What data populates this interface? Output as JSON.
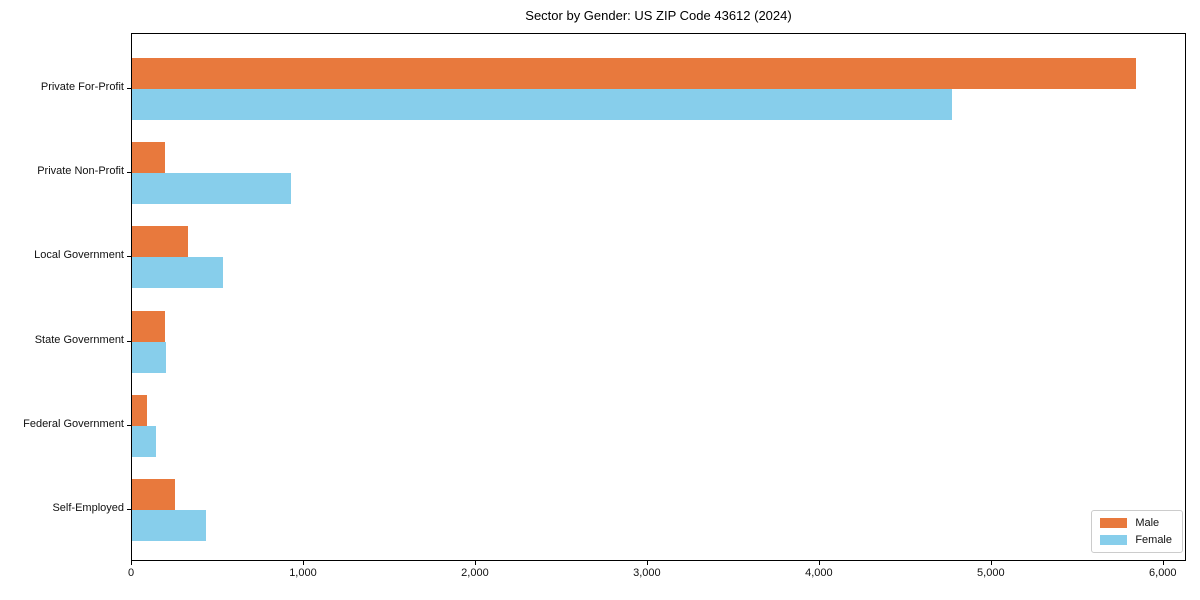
{
  "chart_data": {
    "type": "bar",
    "orientation": "horizontal",
    "title": "Sector by Gender: US ZIP Code 43612 (2024)",
    "categories": [
      "Private For-Profit",
      "Private Non-Profit",
      "Local Government",
      "State Government",
      "Federal Government",
      "Self-Employed"
    ],
    "series": [
      {
        "name": "Male",
        "color": "#e8793d",
        "values": [
          5840,
          190,
          325,
          190,
          90,
          250
        ]
      },
      {
        "name": "Female",
        "color": "#87ceeb",
        "values": [
          4770,
          925,
          530,
          195,
          140,
          430
        ]
      }
    ],
    "xlabel": "",
    "ylabel": "",
    "xlim": [
      0,
      6135
    ],
    "x_ticks": [
      0,
      1000,
      2000,
      3000,
      4000,
      5000,
      6000
    ],
    "x_tick_labels": [
      "0",
      "1,000",
      "2,000",
      "3,000",
      "4,000",
      "5,000",
      "6,000"
    ],
    "grid": false,
    "legend": {
      "position": "lower right"
    }
  }
}
